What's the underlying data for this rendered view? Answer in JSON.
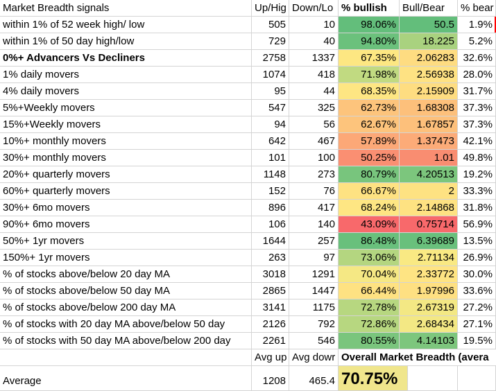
{
  "headers": {
    "label": "Market Breadth signals",
    "up": "Up/Hig",
    "down": "Down/Lo",
    "pct_bullish": "% bullish",
    "bull_bear": "Bull/Bear",
    "pct_bear": "% bear"
  },
  "rows": [
    {
      "label": "within 1% of 52 week high/ low",
      "up": "505",
      "down": "10",
      "pct_bullish": "98.06%",
      "bull_bear": "50.5",
      "pct_bear": "1.9%",
      "pb_color": "#63be7b",
      "br_color": "#63be7b",
      "bold": false
    },
    {
      "label": "within 1% of 50 day high/low",
      "up": "729",
      "down": "40",
      "pct_bullish": "94.80%",
      "bull_bear": "18.225",
      "pct_bear": "5.2%",
      "pb_color": "#6bc17c",
      "br_color": "#a9d27f",
      "bold": false
    },
    {
      "label": "0%+ Advancers Vs Decliners",
      "up": "2758",
      "down": "1337",
      "pct_bullish": "67.35%",
      "bull_bear": "2.06283",
      "pct_bear": "32.6%",
      "pb_color": "#fde782",
      "br_color": "#fedc81",
      "bold": true
    },
    {
      "label": "1% daily movers",
      "up": "1074",
      "down": "418",
      "pct_bullish": "71.98%",
      "bull_bear": "2.56938",
      "pct_bear": "28.0%",
      "pb_color": "#c1da81",
      "br_color": "#fee283",
      "bold": false
    },
    {
      "label": "4% daily movers",
      "up": "95",
      "down": "44",
      "pct_bullish": "68.35%",
      "bull_bear": "2.15909",
      "pct_bear": "31.7%",
      "pb_color": "#fee683",
      "br_color": "#fedd81",
      "bold": false
    },
    {
      "label": "5%+Weekly movers",
      "up": "547",
      "down": "325",
      "pct_bullish": "62.73%",
      "bull_bear": "1.68308",
      "pct_bear": "37.3%",
      "pb_color": "#fdc47c",
      "br_color": "#fdc07b",
      "bold": false
    },
    {
      "label": "15%+Weekly movers",
      "up": "94",
      "down": "56",
      "pct_bullish": "62.67%",
      "bull_bear": "1.67857",
      "pct_bear": "37.3%",
      "pb_color": "#fdc47c",
      "br_color": "#fdc07b",
      "bold": false
    },
    {
      "label": "10%+ monthly movers",
      "up": "642",
      "down": "467",
      "pct_bullish": "57.89%",
      "bull_bear": "1.37473",
      "pct_bear": "42.1%",
      "pb_color": "#fca877",
      "br_color": "#fcab78",
      "bold": false
    },
    {
      "label": "30%+ monthly movers",
      "up": "101",
      "down": "100",
      "pct_bullish": "50.25%",
      "bull_bear": "1.01",
      "pct_bear": "49.8%",
      "pb_color": "#fa8f72",
      "br_color": "#f98d71",
      "bold": false
    },
    {
      "label": "20%+ quarterly movers",
      "up": "1148",
      "down": "273",
      "pct_bullish": "80.79%",
      "bull_bear": "4.20513",
      "pct_bear": "19.2%",
      "pb_color": "#78c57d",
      "br_color": "#7cc67d",
      "bold": false
    },
    {
      "label": "60%+ quarterly movers",
      "up": "152",
      "down": "76",
      "pct_bullish": "66.67%",
      "bull_bear": "2",
      "pct_bear": "33.3%",
      "pb_color": "#fee282",
      "br_color": "#fee282",
      "bold": false
    },
    {
      "label": "30%+ 6mo movers",
      "up": "896",
      "down": "417",
      "pct_bullish": "68.24%",
      "bull_bear": "2.14868",
      "pct_bear": "31.8%",
      "pb_color": "#fee683",
      "br_color": "#fee282",
      "bold": false
    },
    {
      "label": "90%+ 6mo movers",
      "up": "106",
      "down": "140",
      "pct_bullish": "43.09%",
      "bull_bear": "0.75714",
      "pct_bear": "56.9%",
      "pb_color": "#f8696b",
      "br_color": "#f8696b",
      "bold": false
    },
    {
      "label": "50%+ 1yr movers",
      "up": "1644",
      "down": "257",
      "pct_bullish": "86.48%",
      "bull_bear": "6.39689",
      "pct_bear": "13.5%",
      "pb_color": "#69c07c",
      "br_color": "#69c07c",
      "bold": false
    },
    {
      "label": "150%+ 1yr movers",
      "up": "263",
      "down": "97",
      "pct_bullish": "73.06%",
      "bull_bear": "2.71134",
      "pct_bear": "26.9%",
      "pb_color": "#b4d680",
      "br_color": "#f9e983",
      "bold": false
    },
    {
      "label": "% of stocks above/below 20 day MA",
      "up": "3018",
      "down": "1291",
      "pct_bullish": "70.04%",
      "bull_bear": "2.33772",
      "pct_bear": "30.0%",
      "pb_color": "#f5e884",
      "br_color": "#fee483",
      "bold": false
    },
    {
      "label": "% of stocks above/below 50 day MA",
      "up": "2865",
      "down": "1447",
      "pct_bullish": "66.44%",
      "bull_bear": "1.97996",
      "pct_bear": "33.6%",
      "pb_color": "#fee282",
      "br_color": "#fee082",
      "bold": false
    },
    {
      "label": "% of stocks above/below 200 day MA",
      "up": "3141",
      "down": "1175",
      "pct_bullish": "72.78%",
      "bull_bear": "2.67319",
      "pct_bear": "27.2%",
      "pb_color": "#b7d780",
      "br_color": "#f3e884",
      "bold": false
    },
    {
      "label": "% of stocks with 20 day MA above/below 50 day",
      "up": "2126",
      "down": "792",
      "pct_bullish": "72.86%",
      "bull_bear": "2.68434",
      "pct_bear": "27.1%",
      "pb_color": "#b7d780",
      "br_color": "#f3e884",
      "bold": false
    },
    {
      "label": "% of stocks with 50 day MA above/below 200 day",
      "up": "2261",
      "down": "546",
      "pct_bullish": "80.55%",
      "bull_bear": "4.14103",
      "pct_bear": "19.5%",
      "pb_color": "#7ac57d",
      "br_color": "#7dc67d",
      "bold": false
    }
  ],
  "summary_row": {
    "up_label": "Avg up",
    "down_label": "Avg dowr",
    "title": "Overall Market Breadth (avera"
  },
  "average_row": {
    "label": "Average",
    "up": "1208",
    "down": "465.4",
    "value": "70.75%",
    "value_color": "#f0e68c"
  }
}
